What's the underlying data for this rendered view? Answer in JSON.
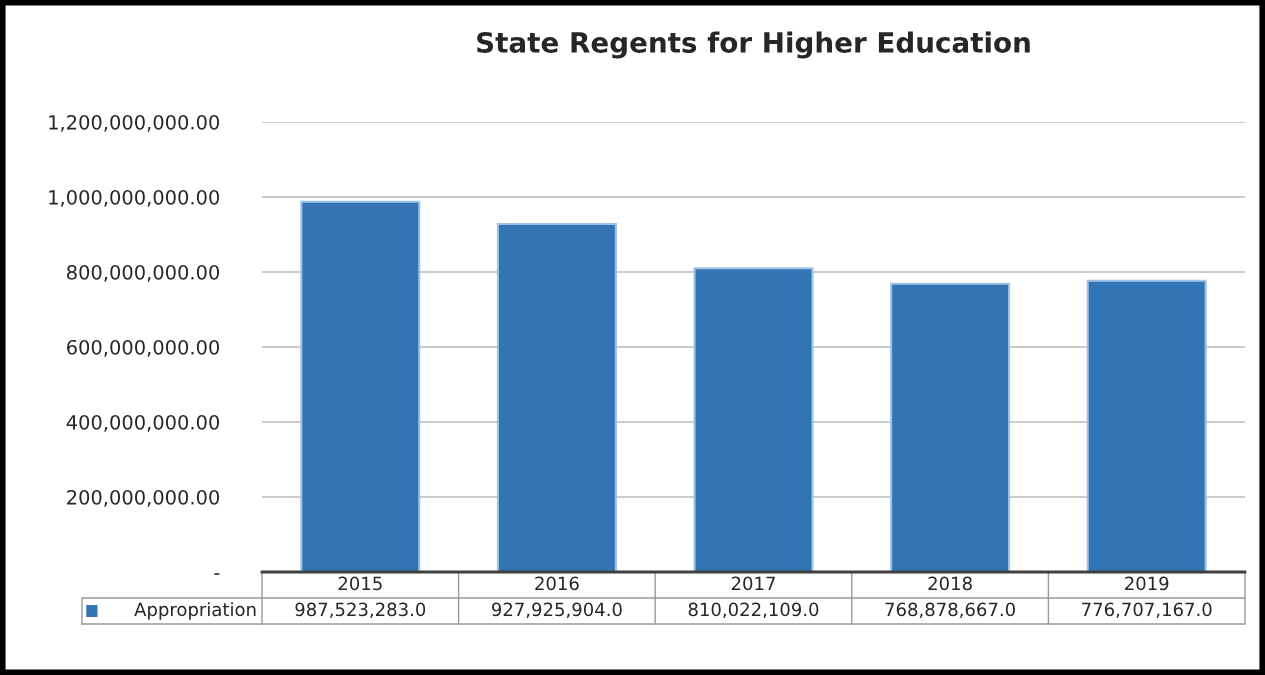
{
  "chart_data": {
    "type": "bar",
    "title": "State Regents for Higher Education",
    "categories": [
      "2015",
      "2016",
      "2017",
      "2018",
      "2019"
    ],
    "series": [
      {
        "name": "Appropriation",
        "color": "#3374b5",
        "values": [
          987523283.0,
          927925904.0,
          810022109.0,
          768878667.0,
          776707167.0
        ],
        "value_labels": [
          "987,523,283.0",
          "927,925,904.0",
          "810,022,109.0",
          "768,878,667.0",
          "776,707,167.0"
        ]
      }
    ],
    "ylim": [
      0,
      1200000000
    ],
    "yticks": [
      {
        "value": 0,
        "label": "-"
      },
      {
        "value": 200000000,
        "label": "200,000,000.00"
      },
      {
        "value": 400000000,
        "label": "400,000,000.00"
      },
      {
        "value": 600000000,
        "label": "600,000,000.00"
      },
      {
        "value": 800000000,
        "label": "800,000,000.00"
      },
      {
        "value": 1000000000,
        "label": "1,000,000,000.00"
      },
      {
        "value": 1200000000,
        "label": "1,200,000,000.00"
      }
    ],
    "grid": "y",
    "legend": "bottom left",
    "data_labels": true
  }
}
